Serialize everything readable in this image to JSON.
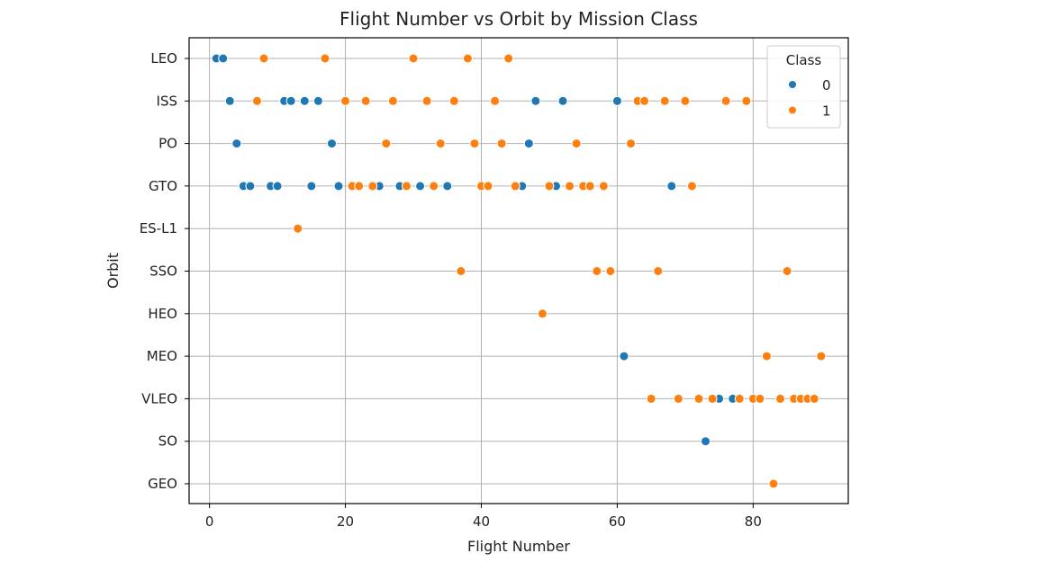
{
  "chart_data": {
    "type": "scatter",
    "title": "Flight Number vs Orbit by Mission Class",
    "xlabel": "Flight Number",
    "ylabel": "Orbit",
    "xlim": [
      -3,
      94
    ],
    "xticks": [
      0,
      20,
      40,
      60,
      80
    ],
    "categories": [
      "LEO",
      "ISS",
      "PO",
      "GTO",
      "ES-L1",
      "SSO",
      "HEO",
      "MEO",
      "VLEO",
      "SO",
      "GEO"
    ],
    "grid": true,
    "legend": {
      "title": "Class",
      "placement": "top-right"
    },
    "series": [
      {
        "name": "0",
        "color": "#1f77b4",
        "points": [
          {
            "x": 1,
            "y": "LEO"
          },
          {
            "x": 2,
            "y": "LEO"
          },
          {
            "x": 3,
            "y": "ISS"
          },
          {
            "x": 11,
            "y": "ISS"
          },
          {
            "x": 12,
            "y": "ISS"
          },
          {
            "x": 14,
            "y": "ISS"
          },
          {
            "x": 16,
            "y": "ISS"
          },
          {
            "x": 48,
            "y": "ISS"
          },
          {
            "x": 52,
            "y": "ISS"
          },
          {
            "x": 60,
            "y": "ISS"
          },
          {
            "x": 4,
            "y": "PO"
          },
          {
            "x": 18,
            "y": "PO"
          },
          {
            "x": 47,
            "y": "PO"
          },
          {
            "x": 5,
            "y": "GTO"
          },
          {
            "x": 6,
            "y": "GTO"
          },
          {
            "x": 9,
            "y": "GTO"
          },
          {
            "x": 10,
            "y": "GTO"
          },
          {
            "x": 15,
            "y": "GTO"
          },
          {
            "x": 19,
            "y": "GTO"
          },
          {
            "x": 25,
            "y": "GTO"
          },
          {
            "x": 28,
            "y": "GTO"
          },
          {
            "x": 31,
            "y": "GTO"
          },
          {
            "x": 35,
            "y": "GTO"
          },
          {
            "x": 46,
            "y": "GTO"
          },
          {
            "x": 51,
            "y": "GTO"
          },
          {
            "x": 68,
            "y": "GTO"
          },
          {
            "x": 61,
            "y": "MEO"
          },
          {
            "x": 75,
            "y": "VLEO"
          },
          {
            "x": 77,
            "y": "VLEO"
          },
          {
            "x": 73,
            "y": "SO"
          }
        ]
      },
      {
        "name": "1",
        "color": "#ff7f0e",
        "points": [
          {
            "x": 8,
            "y": "LEO"
          },
          {
            "x": 17,
            "y": "LEO"
          },
          {
            "x": 30,
            "y": "LEO"
          },
          {
            "x": 38,
            "y": "LEO"
          },
          {
            "x": 44,
            "y": "LEO"
          },
          {
            "x": 7,
            "y": "ISS"
          },
          {
            "x": 20,
            "y": "ISS"
          },
          {
            "x": 23,
            "y": "ISS"
          },
          {
            "x": 27,
            "y": "ISS"
          },
          {
            "x": 32,
            "y": "ISS"
          },
          {
            "x": 36,
            "y": "ISS"
          },
          {
            "x": 42,
            "y": "ISS"
          },
          {
            "x": 63,
            "y": "ISS"
          },
          {
            "x": 64,
            "y": "ISS"
          },
          {
            "x": 67,
            "y": "ISS"
          },
          {
            "x": 70,
            "y": "ISS"
          },
          {
            "x": 76,
            "y": "ISS"
          },
          {
            "x": 79,
            "y": "ISS"
          },
          {
            "x": 26,
            "y": "PO"
          },
          {
            "x": 34,
            "y": "PO"
          },
          {
            "x": 39,
            "y": "PO"
          },
          {
            "x": 43,
            "y": "PO"
          },
          {
            "x": 54,
            "y": "PO"
          },
          {
            "x": 62,
            "y": "PO"
          },
          {
            "x": 21,
            "y": "GTO"
          },
          {
            "x": 22,
            "y": "GTO"
          },
          {
            "x": 24,
            "y": "GTO"
          },
          {
            "x": 29,
            "y": "GTO"
          },
          {
            "x": 33,
            "y": "GTO"
          },
          {
            "x": 40,
            "y": "GTO"
          },
          {
            "x": 41,
            "y": "GTO"
          },
          {
            "x": 45,
            "y": "GTO"
          },
          {
            "x": 50,
            "y": "GTO"
          },
          {
            "x": 53,
            "y": "GTO"
          },
          {
            "x": 55,
            "y": "GTO"
          },
          {
            "x": 56,
            "y": "GTO"
          },
          {
            "x": 58,
            "y": "GTO"
          },
          {
            "x": 71,
            "y": "GTO"
          },
          {
            "x": 13,
            "y": "ES-L1"
          },
          {
            "x": 37,
            "y": "SSO"
          },
          {
            "x": 57,
            "y": "SSO"
          },
          {
            "x": 59,
            "y": "SSO"
          },
          {
            "x": 66,
            "y": "SSO"
          },
          {
            "x": 85,
            "y": "SSO"
          },
          {
            "x": 49,
            "y": "HEO"
          },
          {
            "x": 82,
            "y": "MEO"
          },
          {
            "x": 90,
            "y": "MEO"
          },
          {
            "x": 65,
            "y": "VLEO"
          },
          {
            "x": 69,
            "y": "VLEO"
          },
          {
            "x": 72,
            "y": "VLEO"
          },
          {
            "x": 74,
            "y": "VLEO"
          },
          {
            "x": 78,
            "y": "VLEO"
          },
          {
            "x": 80,
            "y": "VLEO"
          },
          {
            "x": 81,
            "y": "VLEO"
          },
          {
            "x": 84,
            "y": "VLEO"
          },
          {
            "x": 86,
            "y": "VLEO"
          },
          {
            "x": 87,
            "y": "VLEO"
          },
          {
            "x": 88,
            "y": "VLEO"
          },
          {
            "x": 89,
            "y": "VLEO"
          },
          {
            "x": 83,
            "y": "GEO"
          }
        ]
      }
    ]
  }
}
